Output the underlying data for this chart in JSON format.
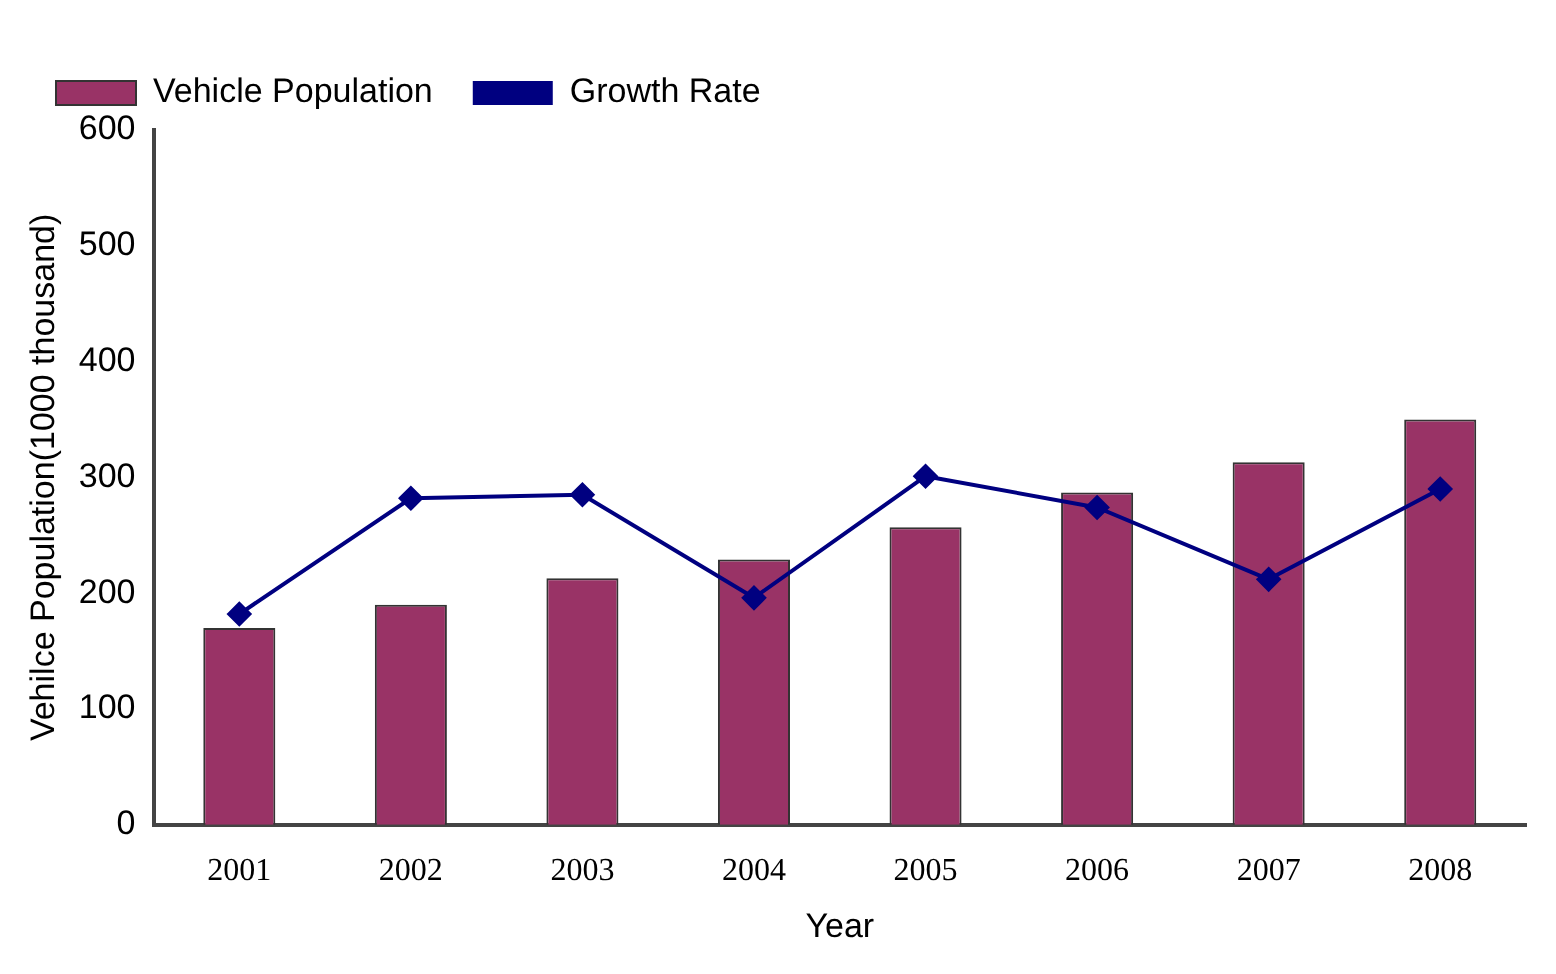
{
  "chart_data": {
    "type": "bar",
    "xlabel": "Year",
    "ylabel": "Vehilce Population(1000 thousand)",
    "categories": [
      "2001",
      "2002",
      "2003",
      "2004",
      "2005",
      "2006",
      "2007",
      "2008"
    ],
    "ylim": [
      0,
      600
    ],
    "yticks": [
      0,
      100,
      200,
      300,
      400,
      500,
      600
    ],
    "grid": false,
    "legend": "top left",
    "series": [
      {
        "name": "Vehicle Population",
        "color": "#993366",
        "values": [
          170,
          190,
          213,
          229,
          257,
          287,
          313,
          350
        ]
      },
      {
        "name": "Growth Rate",
        "type": "line",
        "color": "#000080",
        "marker": "diamond",
        "values": [
          182,
          282,
          285,
          196,
          301,
          274,
          212,
          290
        ]
      }
    ]
  }
}
